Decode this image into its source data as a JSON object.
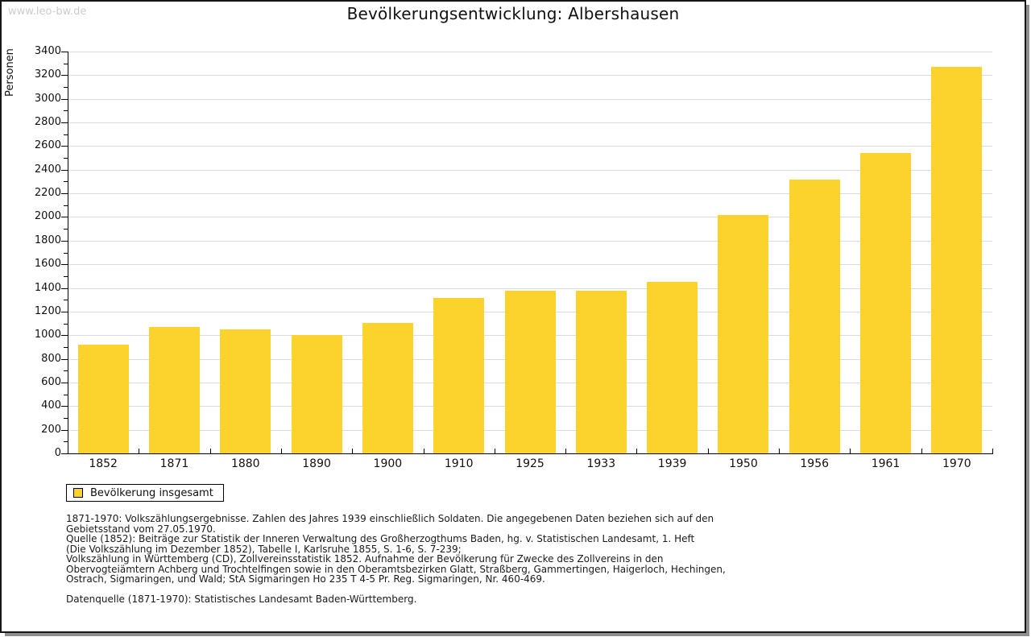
{
  "page": {
    "watermark": "www.leo-bw.de",
    "title": "Bevölkerungsentwicklung: Albershausen"
  },
  "chart_data": {
    "type": "bar",
    "title": "Bevölkerungsentwicklung: Albershausen",
    "xlabel": "",
    "ylabel": "Personen",
    "ylim": [
      0,
      3400
    ],
    "y_major_step": 200,
    "y_minor_step": 100,
    "grid": true,
    "legend_position": "bottom-left",
    "bar_color": "#FCD32C",
    "gridline_color": "#DBDBDB",
    "axis_color": "#000000",
    "categories": [
      "1852",
      "1871",
      "1880",
      "1890",
      "1900",
      "1910",
      "1925",
      "1933",
      "1939",
      "1950",
      "1956",
      "1961",
      "1970"
    ],
    "series": [
      {
        "name": "Bevölkerung insgesamt",
        "values": [
          920,
          1069,
          1049,
          1001,
          1104,
          1315,
          1376,
          1373,
          1451,
          2016,
          2316,
          2541,
          3270
        ]
      }
    ]
  },
  "legend": {
    "label": "Bevölkerung insgesamt",
    "swatch_color": "#FCD32C"
  },
  "footnotes": {
    "lines": [
      "1871-1970: Volkszählungsergebnisse. Zahlen des Jahres 1939 einschließlich Soldaten. Die angegebenen Daten beziehen sich auf den",
      "Gebietsstand vom 27.05.1970.",
      "Quelle (1852): Beiträge zur Statistik der Inneren Verwaltung des Großherzogthums Baden, hg. v. Statistischen Landesamt, 1. Heft",
      "(Die Volkszählung im Dezember 1852), Tabelle I, Karlsruhe 1855, S. 1-6, S. 7-239;",
      "Volkszählung in Württemberg (CD), Zollvereinsstatistik 1852. Aufnahme der Bevölkerung für Zwecke des Zollvereins in den",
      "Obervogteiämtern Achberg und Trochtelfingen sowie in den Oberamtsbezirken Glatt, Straßberg, Gammertingen, Haigerloch, Hechingen,",
      "Ostrach, Sigmaringen, und Wald; StA Sigmaringen Ho 235 T 4-5 Pr. Reg. Sigmaringen, Nr. 460-469.",
      "",
      "Datenquelle (1871-1970): Statistisches Landesamt Baden-Württemberg."
    ]
  },
  "colors": {
    "watermark": "#CCCCCC",
    "page_border": "#161616",
    "shadow": "#8F8F8F",
    "text": "#111111"
  }
}
